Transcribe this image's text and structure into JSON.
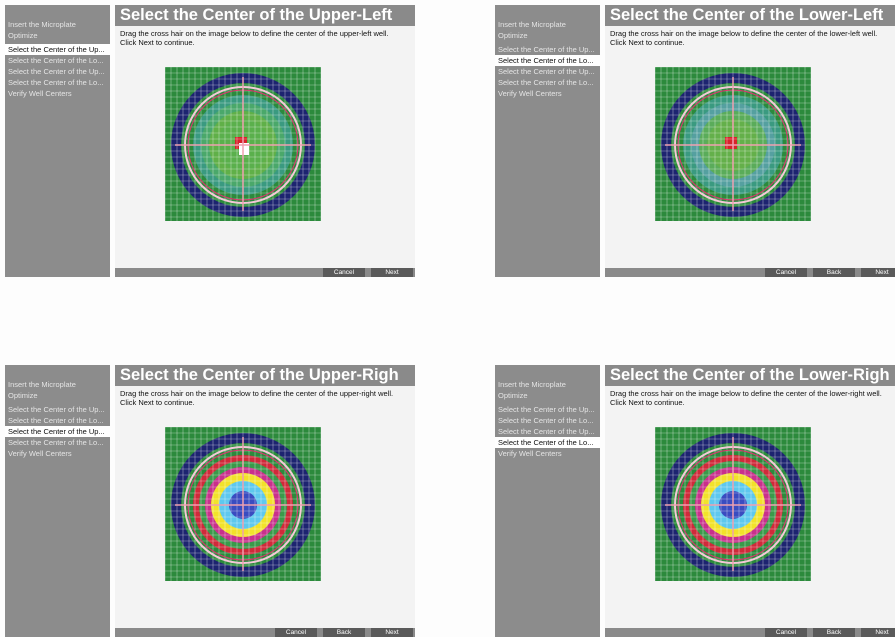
{
  "panels": [
    {
      "steps": [
        "Insert the Microplate",
        "Optimize",
        "Select the Center of the Up...",
        "Select the Center of the Lo...",
        "Select the Center of the Up...",
        "Select the Center of the Lo...",
        "Verify Well Centers"
      ],
      "active_step": 2,
      "title": "Select the Center of the Upper-Left",
      "instruction": "Drag the cross hair on the image below to define the center of the upper-left well. Click Next to continue.",
      "buttons": [
        "Cancel",
        "Next"
      ]
    },
    {
      "steps": [
        "Insert the Microplate",
        "Optimize",
        "Select the Center of the Up...",
        "Select the Center of the Lo...",
        "Select the Center of the Up...",
        "Select the Center of the Lo...",
        "Verify Well Centers"
      ],
      "active_step": 3,
      "title": "Select the Center of the Lower-Left",
      "instruction": "Drag the cross hair on the image below to define the center of the lower-left well. Click Next to continue.",
      "buttons": [
        "Cancel",
        "Back",
        "Next"
      ]
    },
    {
      "steps": [
        "Insert the Microplate",
        "Optimize",
        "Select the Center of the Up...",
        "Select the Center of the Lo...",
        "Select the Center of the Up...",
        "Select the Center of the Lo...",
        "Verify Well Centers"
      ],
      "active_step": 4,
      "title": "Select the Center of the Upper-Righ",
      "instruction": "Drag the cross hair on the image below to define the center of the upper-right well. Click Next to continue.",
      "buttons": [
        "Cancel",
        "Back",
        "Next"
      ]
    },
    {
      "steps": [
        "Insert the Microplate",
        "Optimize",
        "Select the Center of the Up...",
        "Select the Center of the Lo...",
        "Select the Center of the Up...",
        "Select the Center of the Lo...",
        "Verify Well Centers"
      ],
      "active_step": 5,
      "title": "Select the Center of the Lower-Righ",
      "instruction": "Drag the cross hair on the image below to define the center of the lower-right well. Click Next to continue.",
      "buttons": [
        "Cancel",
        "Back",
        "Next"
      ]
    }
  ]
}
